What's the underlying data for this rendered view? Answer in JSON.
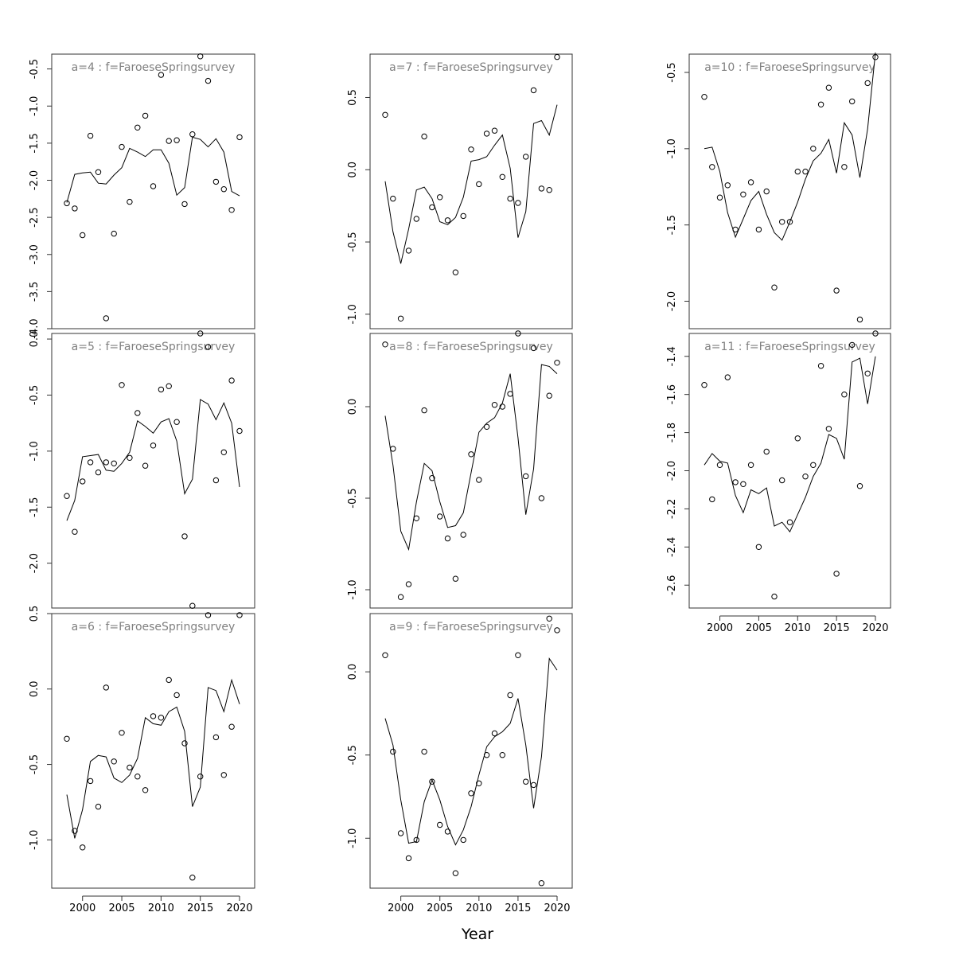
{
  "figure": {
    "xlabel": "Year"
  },
  "chart_data": [
    {
      "type": "scatter",
      "title": "a=4 : f=FaroeseSpringsurvey",
      "xlim": [
        1998,
        2020
      ],
      "ylim": [
        -4.0,
        -0.3
      ],
      "yticks": [
        -4.0,
        -3.5,
        -3.0,
        -2.5,
        -2.0,
        -1.5,
        -1.0,
        -0.5
      ],
      "ytick_labels": [
        "-4.0",
        "-3.5",
        "-3.0",
        "-2.5",
        "-2.0",
        "-1.5",
        "-1.0",
        "-0.5"
      ],
      "xticks": [],
      "x": [
        1998,
        1999,
        2000,
        2001,
        2002,
        2003,
        2004,
        2005,
        2006,
        2007,
        2008,
        2009,
        2010,
        2011,
        2012,
        2013,
        2014,
        2015,
        2016,
        2017,
        2018,
        2019,
        2020
      ],
      "series": [
        {
          "style": "points",
          "values": [
            -2.31,
            -2.38,
            -2.74,
            -1.4,
            -1.89,
            -3.86,
            -2.72,
            -1.55,
            -2.29,
            -1.29,
            -1.13,
            -2.08,
            -0.58,
            -1.47,
            -1.46,
            -2.32,
            -1.38,
            -0.33,
            -0.66,
            -2.02,
            -2.12,
            -2.4,
            -1.42
          ]
        },
        {
          "style": "line",
          "values": [
            -2.3,
            -1.92,
            -1.9,
            -1.89,
            -2.04,
            -2.05,
            -1.93,
            -1.83,
            -1.57,
            -1.62,
            -1.68,
            -1.59,
            -1.59,
            -1.77,
            -2.2,
            -2.1,
            -1.42,
            -1.45,
            -1.55,
            -1.44,
            -1.62,
            -2.15,
            -2.21
          ]
        }
      ]
    },
    {
      "type": "scatter",
      "title": "a=5 : f=FaroeseSpringsurvey",
      "xlim": [
        1998,
        2020
      ],
      "ylim": [
        -2.4,
        0.05
      ],
      "yticks": [
        -2.0,
        -1.5,
        -1.0,
        -0.5,
        0.0
      ],
      "ytick_labels": [
        "-2.0",
        "-1.5",
        "-1.0",
        "-0.5",
        "0.0"
      ],
      "xticks": [],
      "x": [
        1998,
        1999,
        2000,
        2001,
        2002,
        2003,
        2004,
        2005,
        2006,
        2007,
        2008,
        2009,
        2010,
        2011,
        2012,
        2013,
        2014,
        2015,
        2016,
        2017,
        2018,
        2019,
        2020
      ],
      "series": [
        {
          "style": "points",
          "values": [
            -1.4,
            -1.72,
            -1.27,
            -1.1,
            -1.19,
            -1.1,
            -1.11,
            -0.41,
            -1.06,
            -0.66,
            -1.13,
            -0.95,
            -0.45,
            -0.42,
            -0.74,
            -1.76,
            -2.38,
            0.05,
            -0.07,
            -1.26,
            -1.01,
            -0.37,
            -0.82
          ]
        },
        {
          "style": "line",
          "values": [
            -1.62,
            -1.44,
            -1.05,
            -1.04,
            -1.03,
            -1.17,
            -1.18,
            -1.11,
            -1.01,
            -0.73,
            -0.78,
            -0.84,
            -0.74,
            -0.71,
            -0.91,
            -1.38,
            -1.25,
            -0.54,
            -0.58,
            -0.72,
            -0.57,
            -0.75,
            -1.32
          ]
        }
      ]
    },
    {
      "type": "scatter",
      "title": "a=6 : f=FaroeseSpringsurvey",
      "xlim": [
        1998,
        2020
      ],
      "ylim": [
        -1.32,
        0.5
      ],
      "yticks": [
        -1.0,
        -0.5,
        0.0,
        0.5
      ],
      "ytick_labels": [
        "-1.0",
        "-0.5",
        "0.0",
        "0.5"
      ],
      "xticks": [
        2000,
        2005,
        2010,
        2015,
        2020
      ],
      "xtick_labels": [
        "2000",
        "2005",
        "2010",
        "2015",
        "2020"
      ],
      "x": [
        1998,
        1999,
        2000,
        2001,
        2002,
        2003,
        2004,
        2005,
        2006,
        2007,
        2008,
        2009,
        2010,
        2011,
        2012,
        2013,
        2014,
        2015,
        2016,
        2017,
        2018,
        2019,
        2020
      ],
      "series": [
        {
          "style": "points",
          "values": [
            -0.33,
            -0.94,
            -1.05,
            -0.61,
            -0.78,
            0.01,
            -0.48,
            -0.29,
            -0.52,
            -0.58,
            -0.67,
            -0.18,
            -0.19,
            0.06,
            -0.04,
            -0.36,
            -1.25,
            -0.58,
            0.49,
            -0.32,
            -0.57,
            -0.25,
            0.49
          ]
        },
        {
          "style": "line",
          "values": [
            -0.7,
            -0.99,
            -0.8,
            -0.48,
            -0.44,
            -0.45,
            -0.59,
            -0.62,
            -0.57,
            -0.46,
            -0.19,
            -0.23,
            -0.24,
            -0.15,
            -0.12,
            -0.28,
            -0.78,
            -0.65,
            0.01,
            -0.01,
            -0.15,
            0.06,
            -0.1
          ]
        }
      ]
    },
    {
      "type": "scatter",
      "title": "a=7 : f=FaroeseSpringsurvey",
      "xlim": [
        1998,
        2020
      ],
      "ylim": [
        -1.1,
        0.8
      ],
      "yticks": [
        -1.0,
        -0.5,
        0.0,
        0.5
      ],
      "ytick_labels": [
        "-1.0",
        "-0.5",
        "0.0",
        "0.5"
      ],
      "xticks": [],
      "x": [
        1998,
        1999,
        2000,
        2001,
        2002,
        2003,
        2004,
        2005,
        2006,
        2007,
        2008,
        2009,
        2010,
        2011,
        2012,
        2013,
        2014,
        2015,
        2016,
        2017,
        2018,
        2019,
        2020
      ],
      "series": [
        {
          "style": "points",
          "values": [
            0.38,
            -0.2,
            -1.03,
            -0.56,
            -0.34,
            0.23,
            -0.26,
            -0.19,
            -0.35,
            -0.71,
            -0.32,
            0.14,
            -0.1,
            0.25,
            0.27,
            -0.05,
            -0.2,
            -0.23,
            0.09,
            0.55,
            -0.13,
            -0.14,
            0.78
          ]
        },
        {
          "style": "line",
          "values": [
            -0.08,
            -0.43,
            -0.65,
            -0.41,
            -0.14,
            -0.12,
            -0.2,
            -0.36,
            -0.38,
            -0.33,
            -0.19,
            0.06,
            0.07,
            0.09,
            0.17,
            0.24,
            0.01,
            -0.47,
            -0.29,
            0.32,
            0.34,
            0.24,
            0.45
          ]
        }
      ]
    },
    {
      "type": "scatter",
      "title": "a=8 : f=FaroeseSpringsurvey",
      "xlim": [
        1998,
        2020
      ],
      "ylim": [
        -1.1,
        0.4
      ],
      "yticks": [
        -1.0,
        -0.5,
        0.0
      ],
      "ytick_labels": [
        "-1.0",
        "-0.5",
        "0.0"
      ],
      "xticks": [],
      "x": [
        1998,
        1999,
        2000,
        2001,
        2002,
        2003,
        2004,
        2005,
        2006,
        2007,
        2008,
        2009,
        2010,
        2011,
        2012,
        2013,
        2014,
        2015,
        2016,
        2017,
        2018,
        2019,
        2020
      ],
      "series": [
        {
          "style": "points",
          "values": [
            0.34,
            -0.23,
            -1.04,
            -0.97,
            -0.61,
            -0.02,
            -0.39,
            -0.6,
            -0.72,
            -0.94,
            -0.7,
            -0.26,
            -0.4,
            -0.11,
            0.01,
            0.0,
            0.07,
            0.4,
            -0.38,
            0.32,
            -0.5,
            0.06,
            0.24
          ]
        },
        {
          "style": "line",
          "values": [
            -0.05,
            -0.32,
            -0.68,
            -0.78,
            -0.52,
            -0.31,
            -0.35,
            -0.52,
            -0.66,
            -0.65,
            -0.58,
            -0.36,
            -0.14,
            -0.09,
            -0.06,
            0.02,
            0.18,
            -0.17,
            -0.59,
            -0.34,
            0.23,
            0.22,
            0.18
          ]
        }
      ]
    },
    {
      "type": "scatter",
      "title": "a=9 : f=FaroeseSpringsurvey",
      "xlim": [
        1998,
        2020
      ],
      "ylim": [
        -1.3,
        0.35
      ],
      "yticks": [
        -1.0,
        -0.5,
        0.0
      ],
      "ytick_labels": [
        "-1.0",
        "-0.5",
        "0.0"
      ],
      "xticks": [
        2000,
        2005,
        2010,
        2015,
        2020
      ],
      "xtick_labels": [
        "2000",
        "2005",
        "2010",
        "2015",
        "2020"
      ],
      "x": [
        1998,
        1999,
        2000,
        2001,
        2002,
        2003,
        2004,
        2005,
        2006,
        2007,
        2008,
        2009,
        2010,
        2011,
        2012,
        2013,
        2014,
        2015,
        2016,
        2017,
        2018,
        2019,
        2020
      ],
      "series": [
        {
          "style": "points",
          "values": [
            0.1,
            -0.48,
            -0.97,
            -1.12,
            -1.01,
            -0.48,
            -0.66,
            -0.92,
            -0.96,
            -1.21,
            -1.01,
            -0.73,
            -0.67,
            -0.5,
            -0.37,
            -0.5,
            -0.14,
            0.1,
            -0.66,
            -0.68,
            -1.27,
            0.32,
            0.25
          ]
        },
        {
          "style": "line",
          "values": [
            -0.28,
            -0.44,
            -0.77,
            -1.03,
            -1.02,
            -0.78,
            -0.65,
            -0.77,
            -0.93,
            -1.04,
            -0.95,
            -0.81,
            -0.62,
            -0.45,
            -0.39,
            -0.36,
            -0.31,
            -0.16,
            -0.44,
            -0.82,
            -0.51,
            0.08,
            0.01
          ]
        }
      ]
    },
    {
      "type": "scatter",
      "title": "a=10 : f=FaroeseSpringsurvey",
      "xlim": [
        1998,
        2020
      ],
      "ylim": [
        -2.18,
        -0.38
      ],
      "yticks": [
        -2.0,
        -1.5,
        -1.0,
        -0.5
      ],
      "ytick_labels": [
        "-2.0",
        "-1.5",
        "-1.0",
        "-0.5"
      ],
      "xticks": [],
      "x": [
        1998,
        1999,
        2000,
        2001,
        2002,
        2003,
        2004,
        2005,
        2006,
        2007,
        2008,
        2009,
        2010,
        2011,
        2012,
        2013,
        2014,
        2015,
        2016,
        2017,
        2018,
        2019,
        2020
      ],
      "series": [
        {
          "style": "points",
          "values": [
            -0.66,
            -1.12,
            -1.32,
            -1.24,
            -1.53,
            -1.3,
            -1.22,
            -1.53,
            -1.28,
            -1.91,
            -1.48,
            -1.48,
            -1.15,
            -1.15,
            -1.0,
            -0.71,
            -0.6,
            -1.93,
            -1.12,
            -0.69,
            -2.12,
            -0.57,
            -0.4
          ]
        },
        {
          "style": "line",
          "values": [
            -1.0,
            -0.99,
            -1.15,
            -1.42,
            -1.58,
            -1.46,
            -1.34,
            -1.28,
            -1.43,
            -1.55,
            -1.6,
            -1.48,
            -1.35,
            -1.2,
            -1.08,
            -1.03,
            -0.94,
            -1.16,
            -0.83,
            -0.91,
            -1.19,
            -0.87,
            -0.37
          ]
        }
      ]
    },
    {
      "type": "scatter",
      "title": "a=11 : f=FaroeseSpringsurvey",
      "xlim": [
        1998,
        2020
      ],
      "ylim": [
        -2.72,
        -1.28
      ],
      "yticks": [
        -2.6,
        -2.4,
        -2.2,
        -2.0,
        -1.8,
        -1.6,
        -1.4
      ],
      "ytick_labels": [
        "-2.6",
        "-2.4",
        "-2.2",
        "-2.0",
        "-1.8",
        "-1.6",
        "-1.4"
      ],
      "xticks": [
        2000,
        2005,
        2010,
        2015,
        2020
      ],
      "xtick_labels": [
        "2000",
        "2005",
        "2010",
        "2015",
        "2020"
      ],
      "x": [
        1998,
        1999,
        2000,
        2001,
        2002,
        2003,
        2004,
        2005,
        2006,
        2007,
        2008,
        2009,
        2010,
        2011,
        2012,
        2013,
        2014,
        2015,
        2016,
        2017,
        2018,
        2019,
        2020
      ],
      "series": [
        {
          "style": "points",
          "values": [
            -1.55,
            -2.15,
            -1.97,
            -1.51,
            -2.06,
            -2.07,
            -1.97,
            -2.4,
            -1.9,
            -2.66,
            -2.05,
            -2.27,
            -1.83,
            -2.03,
            -1.97,
            -1.45,
            -1.78,
            -2.54,
            -1.6,
            -1.34,
            -2.08,
            -1.49,
            -1.28
          ]
        },
        {
          "style": "line",
          "values": [
            -1.97,
            -1.91,
            -1.95,
            -1.96,
            -2.13,
            -2.22,
            -2.1,
            -2.12,
            -2.09,
            -2.29,
            -2.27,
            -2.32,
            -2.23,
            -2.14,
            -2.03,
            -1.96,
            -1.81,
            -1.83,
            -1.94,
            -1.43,
            -1.41,
            -1.65,
            -1.4
          ]
        }
      ]
    }
  ]
}
